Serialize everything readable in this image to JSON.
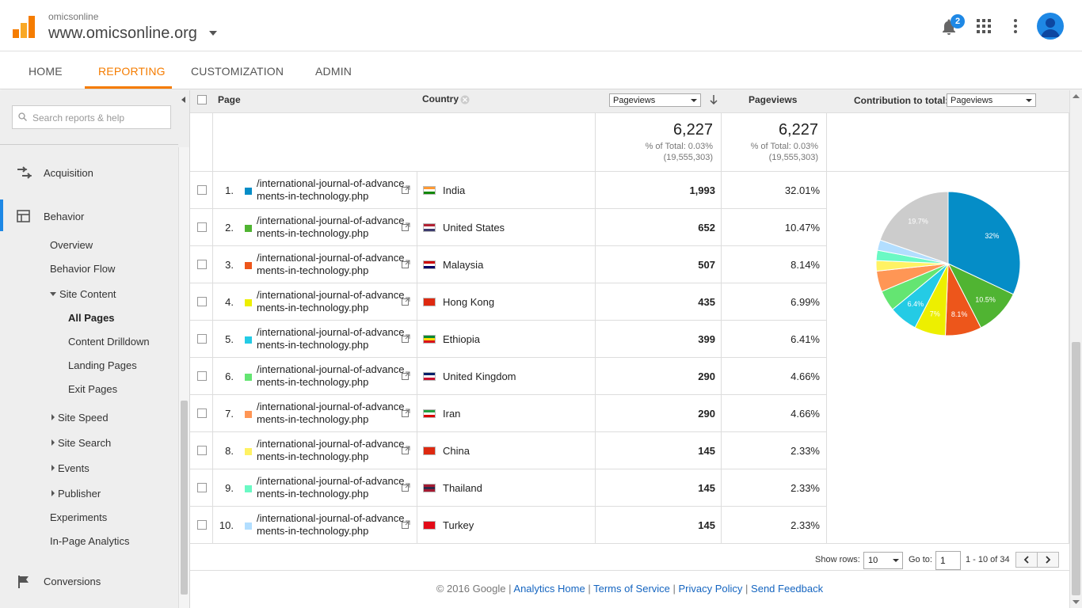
{
  "header": {
    "account_small": "omicsonline",
    "account_name": "www.omicsonline.org",
    "notification_count": "2"
  },
  "nav": {
    "tabs": [
      "HOME",
      "REPORTING",
      "CUSTOMIZATION",
      "ADMIN"
    ],
    "active_tab": "REPORTING"
  },
  "sidebar": {
    "search_placeholder": "Search reports & help",
    "sections": {
      "acquisition": "Acquisition",
      "behavior": "Behavior",
      "conversions": "Conversions"
    },
    "behavior_items": {
      "overview": "Overview",
      "behavior_flow": "Behavior Flow",
      "site_content": "Site Content",
      "all_pages": "All Pages",
      "content_drilldown": "Content Drilldown",
      "landing_pages": "Landing Pages",
      "exit_pages": "Exit Pages",
      "site_speed": "Site Speed",
      "site_search": "Site Search",
      "events": "Events",
      "publisher": "Publisher",
      "experiments": "Experiments",
      "in_page_analytics": "In-Page Analytics"
    }
  },
  "table": {
    "headers": {
      "page": "Page",
      "country": "Country",
      "metric_select": "Pageviews",
      "pageviews": "Pageviews",
      "contribution_label": "Contribution to total:",
      "contribution_select": "Pageviews"
    },
    "summary": {
      "value": "6,227",
      "pct": "% of Total: 0.03%",
      "total": "(19,555,303)"
    },
    "rows": [
      {
        "rank": "1.",
        "page1": "/international-journal-of-advance",
        "page2": "ments-in-technology.php",
        "country": "India",
        "pageviews": "1,993",
        "pct": "32.01%",
        "color": "#058dc7",
        "value": 1993
      },
      {
        "rank": "2.",
        "page1": "/international-journal-of-advance",
        "page2": "ments-in-technology.php",
        "country": "United States",
        "pageviews": "652",
        "pct": "10.47%",
        "color": "#50b432",
        "value": 652
      },
      {
        "rank": "3.",
        "page1": "/international-journal-of-advance",
        "page2": "ments-in-technology.php",
        "country": "Malaysia",
        "pageviews": "507",
        "pct": "8.14%",
        "color": "#ed561b",
        "value": 507
      },
      {
        "rank": "4.",
        "page1": "/international-journal-of-advance",
        "page2": "ments-in-technology.php",
        "country": "Hong Kong",
        "pageviews": "435",
        "pct": "6.99%",
        "color": "#edef00",
        "value": 435
      },
      {
        "rank": "5.",
        "page1": "/international-journal-of-advance",
        "page2": "ments-in-technology.php",
        "country": "Ethiopia",
        "pageviews": "399",
        "pct": "6.41%",
        "color": "#24cbe5",
        "value": 399
      },
      {
        "rank": "6.",
        "page1": "/international-journal-of-advance",
        "page2": "ments-in-technology.php",
        "country": "United Kingdom",
        "pageviews": "290",
        "pct": "4.66%",
        "color": "#64e572",
        "value": 290
      },
      {
        "rank": "7.",
        "page1": "/international-journal-of-advance",
        "page2": "ments-in-technology.php",
        "country": "Iran",
        "pageviews": "290",
        "pct": "4.66%",
        "color": "#ff9655",
        "value": 290
      },
      {
        "rank": "8.",
        "page1": "/international-journal-of-advance",
        "page2": "ments-in-technology.php",
        "country": "China",
        "pageviews": "145",
        "pct": "2.33%",
        "color": "#fff263",
        "value": 145
      },
      {
        "rank": "9.",
        "page1": "/international-journal-of-advance",
        "page2": "ments-in-technology.php",
        "country": "Thailand",
        "pageviews": "145",
        "pct": "2.33%",
        "color": "#6af9c4",
        "value": 145
      },
      {
        "rank": "10.",
        "page1": "/international-journal-of-advance",
        "page2": "ments-in-technology.php",
        "country": "Turkey",
        "pageviews": "145",
        "pct": "2.33%",
        "color": "#b2deff",
        "value": 145
      }
    ]
  },
  "chart_data": {
    "type": "pie",
    "categories": [
      "India",
      "United States",
      "Malaysia",
      "Hong Kong",
      "Ethiopia",
      "United Kingdom",
      "Iran",
      "China",
      "Thailand",
      "Turkey",
      "(Other)"
    ],
    "values": [
      32.01,
      10.47,
      8.14,
      6.99,
      6.41,
      4.66,
      4.66,
      2.33,
      2.33,
      2.33,
      19.67
    ],
    "colors": [
      "#058dc7",
      "#50b432",
      "#ed561b",
      "#edef00",
      "#24cbe5",
      "#64e572",
      "#ff9655",
      "#fff263",
      "#6af9c4",
      "#b2deff",
      "#cccccc"
    ],
    "slice_labels": [
      "32%",
      "10.5%",
      "8.1%",
      "7%",
      "6.4%",
      "",
      "",
      "",
      "",
      "",
      "19.7%"
    ]
  },
  "pager": {
    "show_rows_label": "Show rows:",
    "show_rows_value": "10",
    "goto_label": "Go to:",
    "goto_value": "1",
    "range": "1 - 10 of 34"
  },
  "footer": {
    "copyright": "© 2016 Google |",
    "links": [
      "Analytics Home",
      "Terms of Service",
      "Privacy Policy",
      "Send Feedback"
    ]
  }
}
